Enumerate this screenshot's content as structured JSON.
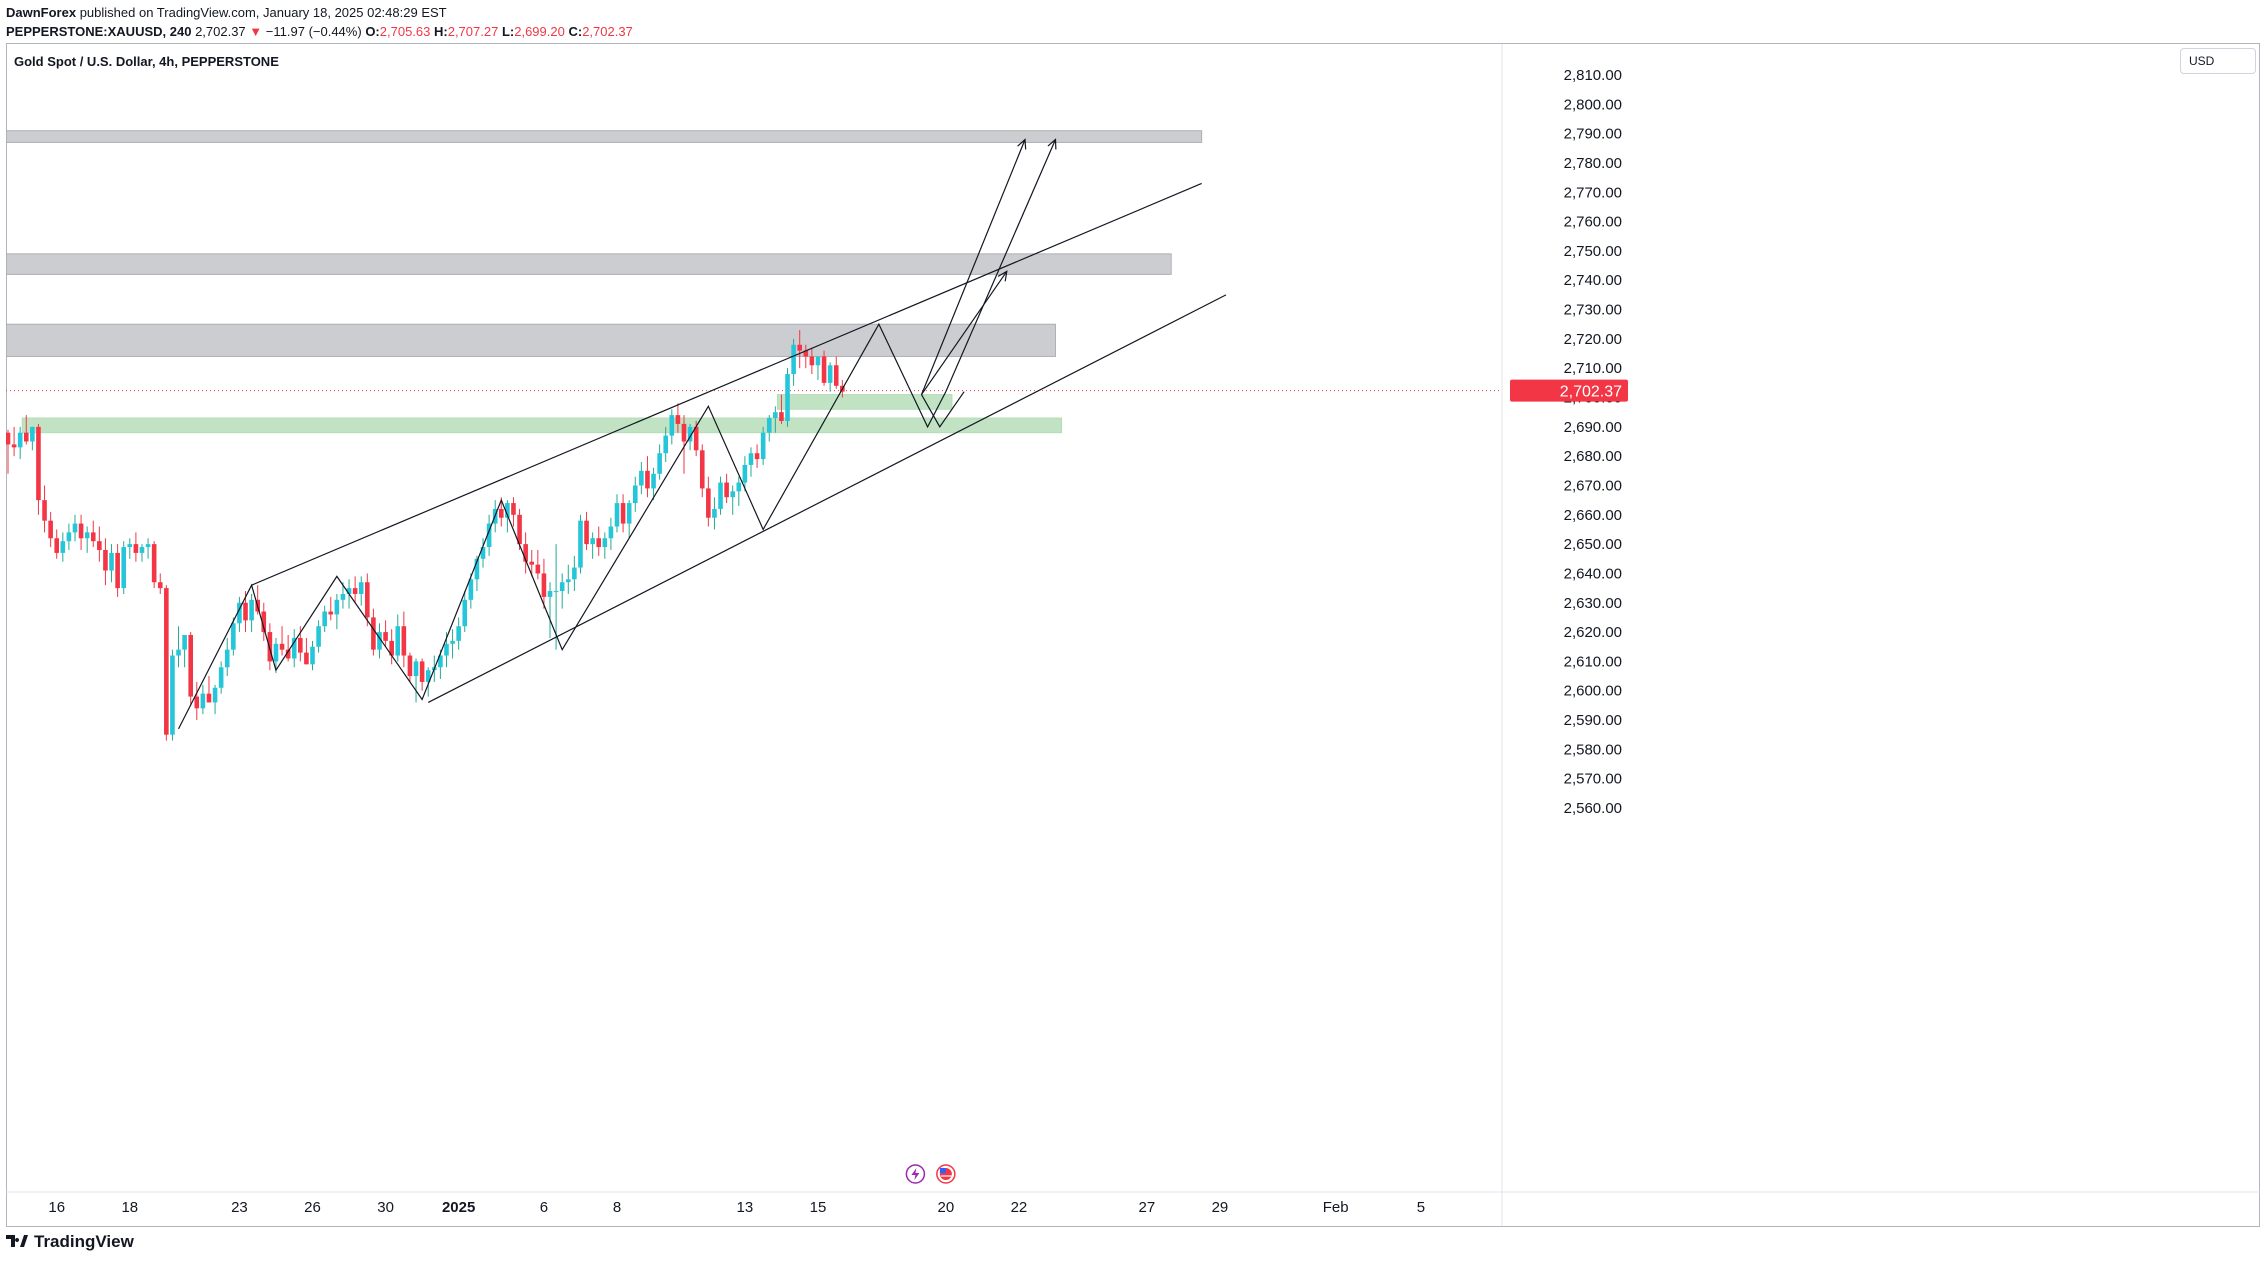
{
  "header": {
    "publisher": "DawnForex",
    "published_text": "published on TradingView.com, January 18, 2025 02:48:29 EST",
    "symbol_line": "PEPPERSTONE:XAUUSD, 240",
    "last": "2,702.37",
    "change_arrow": "▼",
    "change": "−11.97 (−0.44%)",
    "o_label": "O:",
    "o_value": "2,705.63",
    "h_label": "H:",
    "h_value": "2,707.27",
    "l_label": "L:",
    "l_value": "2,699.20",
    "c_label": "C:",
    "c_value": "2,702.37"
  },
  "symbol_title": "Gold Spot / U.S. Dollar, 4h, PEPPERSTONE",
  "currency": "USD",
  "footer": {
    "brand": "TradingView",
    "logo_icon": "tradingview-logo-icon"
  },
  "event_icons": [
    "lightning-icon",
    "us-flag-icon"
  ],
  "colors": {
    "up": "#22ab94",
    "up_body": "#26c6da",
    "down": "#f23645",
    "zone_gray": "#c4c5ca",
    "zone_green": "#b7dfb9",
    "price_tag": "#f23645"
  },
  "chart_data": {
    "type": "candlestick",
    "title": "Gold Spot / U.S. Dollar, 4h, PEPPERSTONE",
    "ylim": [
      2553,
      2825
    ],
    "y_ticks": [
      "2,810.00",
      "2,800.00",
      "2,790.00",
      "2,780.00",
      "2,770.00",
      "2,760.00",
      "2,750.00",
      "2,740.00",
      "2,730.00",
      "2,720.00",
      "2,710.00",
      "2,700.00",
      "2,690.00",
      "2,680.00",
      "2,670.00",
      "2,660.00",
      "2,650.00",
      "2,640.00",
      "2,630.00",
      "2,620.00",
      "2,610.00",
      "2,600.00",
      "2,590.00",
      "2,580.00",
      "2,570.00",
      "2,560.00"
    ],
    "x_ticks": [
      {
        "label": "16",
        "bar": 8
      },
      {
        "label": "18",
        "bar": 20
      },
      {
        "label": "23",
        "bar": 38
      },
      {
        "label": "26",
        "bar": 50
      },
      {
        "label": "30",
        "bar": 62
      },
      {
        "label": "2025",
        "bar": 74
      },
      {
        "label": "6",
        "bar": 88
      },
      {
        "label": "8",
        "bar": 100
      },
      {
        "label": "13",
        "bar": 121
      },
      {
        "label": "15",
        "bar": 133
      },
      {
        "label": "20",
        "bar": 154
      },
      {
        "label": "22",
        "bar": 166
      },
      {
        "label": "27",
        "bar": 187
      },
      {
        "label": "29",
        "bar": 199
      },
      {
        "label": "Feb",
        "bar": 218
      },
      {
        "label": "5",
        "bar": 232
      }
    ],
    "last_price": 2702.37,
    "last_price_label": "2,702.37",
    "candles": [
      [
        2688,
        2689,
        2674,
        2684
      ],
      [
        2684,
        2690,
        2680,
        2683
      ],
      [
        2683,
        2690,
        2679,
        2688
      ],
      [
        2688,
        2694,
        2684,
        2685
      ],
      [
        2685,
        2690,
        2682,
        2690
      ],
      [
        2690,
        2691,
        2660,
        2665
      ],
      [
        2665,
        2670,
        2654,
        2658
      ],
      [
        2658,
        2661,
        2649,
        2652
      ],
      [
        2652,
        2655,
        2645,
        2647
      ],
      [
        2647,
        2654,
        2644,
        2651
      ],
      [
        2651,
        2657,
        2648,
        2654
      ],
      [
        2654,
        2660,
        2651,
        2657
      ],
      [
        2657,
        2660,
        2648,
        2652
      ],
      [
        2652,
        2656,
        2647,
        2654
      ],
      [
        2654,
        2658,
        2649,
        2651
      ],
      [
        2651,
        2656,
        2644,
        2648
      ],
      [
        2648,
        2652,
        2636,
        2641
      ],
      [
        2641,
        2650,
        2637,
        2647
      ],
      [
        2647,
        2650,
        2632,
        2635
      ],
      [
        2635,
        2651,
        2633,
        2649
      ],
      [
        2649,
        2652,
        2645,
        2650
      ],
      [
        2650,
        2654,
        2644,
        2647
      ],
      [
        2647,
        2650,
        2644,
        2649
      ],
      [
        2649,
        2652,
        2645,
        2650
      ],
      [
        2650,
        2651,
        2635,
        2637
      ],
      [
        2637,
        2640,
        2633,
        2635
      ],
      [
        2635,
        2636,
        2583,
        2585
      ],
      [
        2585,
        2614,
        2583,
        2612
      ],
      [
        2612,
        2622,
        2608,
        2614
      ],
      [
        2614,
        2619,
        2608,
        2619
      ],
      [
        2619,
        2620,
        2595,
        2598
      ],
      [
        2598,
        2603,
        2590,
        2594
      ],
      [
        2594,
        2602,
        2592,
        2599
      ],
      [
        2599,
        2605,
        2596,
        2596
      ],
      [
        2596,
        2602,
        2592,
        2601
      ],
      [
        2601,
        2610,
        2599,
        2608
      ],
      [
        2608,
        2618,
        2605,
        2614
      ],
      [
        2614,
        2625,
        2612,
        2623
      ],
      [
        2623,
        2632,
        2620,
        2630
      ],
      [
        2630,
        2634,
        2620,
        2624
      ],
      [
        2624,
        2633,
        2620,
        2631
      ],
      [
        2631,
        2636,
        2626,
        2627
      ],
      [
        2627,
        2630,
        2617,
        2620
      ],
      [
        2620,
        2623,
        2607,
        2610
      ],
      [
        2610,
        2618,
        2606,
        2616
      ],
      [
        2616,
        2622,
        2612,
        2614
      ],
      [
        2614,
        2619,
        2610,
        2611
      ],
      [
        2611,
        2621,
        2608,
        2618
      ],
      [
        2618,
        2622,
        2610,
        2613
      ],
      [
        2613,
        2618,
        2609,
        2609
      ],
      [
        2609,
        2617,
        2607,
        2615
      ],
      [
        2615,
        2624,
        2613,
        2622
      ],
      [
        2622,
        2629,
        2620,
        2627
      ],
      [
        2627,
        2632,
        2624,
        2626
      ],
      [
        2626,
        2633,
        2621,
        2631
      ],
      [
        2631,
        2637,
        2628,
        2633
      ],
      [
        2633,
        2638,
        2628,
        2635
      ],
      [
        2635,
        2639,
        2630,
        2633
      ],
      [
        2633,
        2639,
        2629,
        2637
      ],
      [
        2637,
        2640,
        2622,
        2625
      ],
      [
        2625,
        2628,
        2612,
        2614
      ],
      [
        2614,
        2623,
        2611,
        2620
      ],
      [
        2620,
        2624,
        2615,
        2617
      ],
      [
        2617,
        2621,
        2609,
        2612
      ],
      [
        2612,
        2626,
        2610,
        2622
      ],
      [
        2622,
        2627,
        2608,
        2612
      ],
      [
        2612,
        2613,
        2603,
        2605
      ],
      [
        2605,
        2611,
        2596,
        2610
      ],
      [
        2610,
        2611,
        2600,
        2603
      ],
      [
        2603,
        2608,
        2598,
        2607
      ],
      [
        2607,
        2612,
        2603,
        2608
      ],
      [
        2608,
        2614,
        2604,
        2612
      ],
      [
        2612,
        2620,
        2608,
        2616
      ],
      [
        2616,
        2621,
        2611,
        2617
      ],
      [
        2617,
        2625,
        2614,
        2622
      ],
      [
        2622,
        2634,
        2620,
        2631
      ],
      [
        2631,
        2640,
        2628,
        2638
      ],
      [
        2638,
        2646,
        2634,
        2645
      ],
      [
        2645,
        2652,
        2642,
        2649
      ],
      [
        2649,
        2660,
        2646,
        2657
      ],
      [
        2657,
        2665,
        2654,
        2662
      ],
      [
        2662,
        2666,
        2656,
        2659
      ],
      [
        2659,
        2665,
        2654,
        2664
      ],
      [
        2664,
        2666,
        2656,
        2660
      ],
      [
        2660,
        2662,
        2648,
        2650
      ],
      [
        2650,
        2654,
        2640,
        2644
      ],
      [
        2644,
        2648,
        2639,
        2643
      ],
      [
        2643,
        2648,
        2638,
        2640
      ],
      [
        2640,
        2645,
        2628,
        2632
      ],
      [
        2632,
        2637,
        2618,
        2634
      ],
      [
        2634,
        2650,
        2614,
        2634
      ],
      [
        2634,
        2640,
        2628,
        2637
      ],
      [
        2637,
        2643,
        2633,
        2638
      ],
      [
        2638,
        2646,
        2634,
        2642
      ],
      [
        2642,
        2660,
        2640,
        2658
      ],
      [
        2658,
        2661,
        2648,
        2650
      ],
      [
        2650,
        2654,
        2645,
        2652
      ],
      [
        2652,
        2656,
        2646,
        2649
      ],
      [
        2649,
        2654,
        2645,
        2652
      ],
      [
        2652,
        2659,
        2648,
        2656
      ],
      [
        2656,
        2667,
        2654,
        2664
      ],
      [
        2664,
        2667,
        2654,
        2657
      ],
      [
        2657,
        2665,
        2652,
        2664
      ],
      [
        2664,
        2673,
        2661,
        2670
      ],
      [
        2670,
        2678,
        2667,
        2675
      ],
      [
        2675,
        2680,
        2666,
        2669
      ],
      [
        2669,
        2676,
        2665,
        2674
      ],
      [
        2674,
        2684,
        2672,
        2681
      ],
      [
        2681,
        2690,
        2678,
        2687
      ],
      [
        2687,
        2696,
        2684,
        2694
      ],
      [
        2694,
        2698,
        2688,
        2691
      ],
      [
        2691,
        2694,
        2674,
        2685
      ],
      [
        2685,
        2691,
        2682,
        2690
      ],
      [
        2690,
        2692,
        2680,
        2682
      ],
      [
        2682,
        2684,
        2666,
        2669
      ],
      [
        2669,
        2673,
        2656,
        2659
      ],
      [
        2659,
        2666,
        2655,
        2662
      ],
      [
        2662,
        2673,
        2660,
        2671
      ],
      [
        2671,
        2674,
        2664,
        2666
      ],
      [
        2666,
        2670,
        2660,
        2668
      ],
      [
        2668,
        2673,
        2663,
        2671
      ],
      [
        2671,
        2680,
        2668,
        2677
      ],
      [
        2677,
        2683,
        2673,
        2681
      ],
      [
        2681,
        2684,
        2676,
        2679
      ],
      [
        2679,
        2690,
        2677,
        2688
      ],
      [
        2688,
        2694,
        2685,
        2693
      ],
      [
        2693,
        2697,
        2688,
        2695
      ],
      [
        2695,
        2701,
        2691,
        2692
      ],
      [
        2692,
        2710,
        2690,
        2708
      ],
      [
        2708,
        2720,
        2704,
        2718
      ],
      [
        2718,
        2723,
        2710,
        2716
      ],
      [
        2716,
        2718,
        2710,
        2714
      ],
      [
        2714,
        2717,
        2708,
        2711
      ],
      [
        2711,
        2714,
        2706,
        2714
      ],
      [
        2714,
        2716,
        2704,
        2705
      ],
      [
        2705,
        2712,
        2702,
        2711
      ],
      [
        2711,
        2714,
        2703,
        2704
      ],
      [
        2704,
        2706,
        2700,
        2702
      ]
    ],
    "zones": [
      {
        "type": "resistance",
        "from_bar": 0,
        "to_bar": 196,
        "low": 2787,
        "high": 2791
      },
      {
        "type": "resistance",
        "from_bar": 0,
        "to_bar": 191,
        "low": 2742,
        "high": 2749
      },
      {
        "type": "resistance",
        "from_bar": 0,
        "to_bar": 172,
        "low": 2714,
        "high": 2725
      },
      {
        "type": "support",
        "from_bar": 127,
        "to_bar": 155,
        "low": 2696,
        "high": 2701
      },
      {
        "type": "support",
        "from_bar": 3,
        "to_bar": 173,
        "low": 2688,
        "high": 2693
      }
    ],
    "channel": [
      {
        "from": [
          40,
          2636
        ],
        "to": [
          196,
          2773
        ]
      },
      {
        "from": [
          69,
          2596
        ],
        "to": [
          200,
          2735
        ]
      }
    ],
    "zigzag": [
      [
        28,
        2587
      ],
      [
        40,
        2636
      ],
      [
        44,
        2607
      ],
      [
        54,
        2639
      ],
      [
        68,
        2597
      ],
      [
        81,
        2665
      ],
      [
        91,
        2614
      ],
      [
        115,
        2697
      ],
      [
        124,
        2655
      ],
      [
        143,
        2725
      ],
      [
        151,
        2690
      ],
      [
        154,
        2702
      ]
    ],
    "projection_paths": [
      {
        "points": [
          [
            150,
            2701
          ],
          [
            164,
            2743
          ]
        ],
        "arrow": true
      },
      {
        "points": [
          [
            150,
            2701
          ],
          [
            167,
            2788
          ]
        ],
        "arrow": true
      },
      {
        "points": [
          [
            154,
            2702
          ],
          [
            172,
            2788
          ]
        ],
        "arrow": true
      },
      {
        "points": [
          [
            150,
            2701
          ],
          [
            153,
            2690
          ],
          [
            157,
            2702
          ]
        ],
        "arrow": false
      }
    ],
    "bars_total": 240,
    "events": [
      {
        "type": "lightning",
        "bar": 149
      },
      {
        "type": "us-flag",
        "bar": 154
      }
    ]
  }
}
